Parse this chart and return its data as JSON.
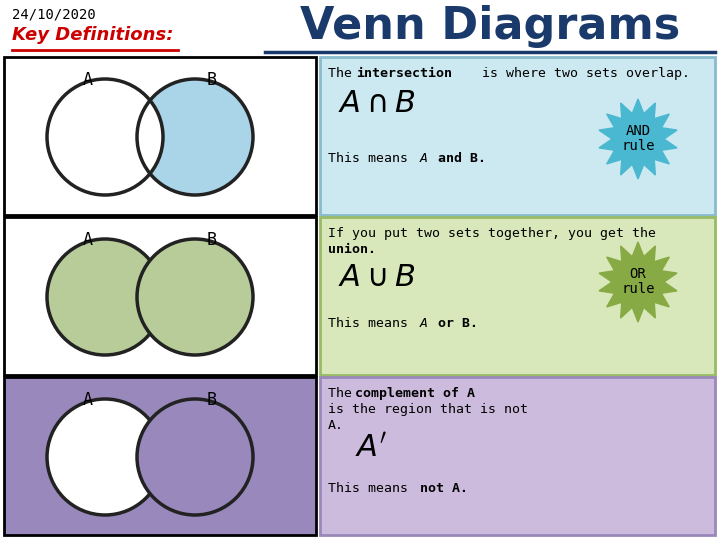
{
  "title": "Venn Diagrams",
  "date": "24/10/2020",
  "key_def_label": "Key Definitions:",
  "bg_color": "#ffffff",
  "title_color": "#1a3a6b",
  "date_color": "#000000",
  "key_def_color": "#cc0000",
  "row1": {
    "box_bg": "#ffffff",
    "box_border": "#000000",
    "intersection_color": "#aad4e8",
    "circle_stroke": "#222222",
    "info_bg": "#cce8f0",
    "info_border": "#88bbcc",
    "badge_color": "#4ab8d0",
    "A_label": "A",
    "B_label": "B"
  },
  "row2": {
    "box_bg": "#ffffff",
    "box_border": "#000000",
    "circle_color": "#b8cc99",
    "circle_stroke": "#222222",
    "info_bg": "#d8e8bb",
    "info_border": "#99bb66",
    "badge_color": "#88aa44",
    "A_label": "A",
    "B_label": "B"
  },
  "row3": {
    "box_bg": "#9988bb",
    "box_border": "#000000",
    "circle_stroke": "#222222",
    "info_bg": "#ccbbdd",
    "info_border": "#9988bb",
    "A_label": "A",
    "B_label": "B"
  }
}
